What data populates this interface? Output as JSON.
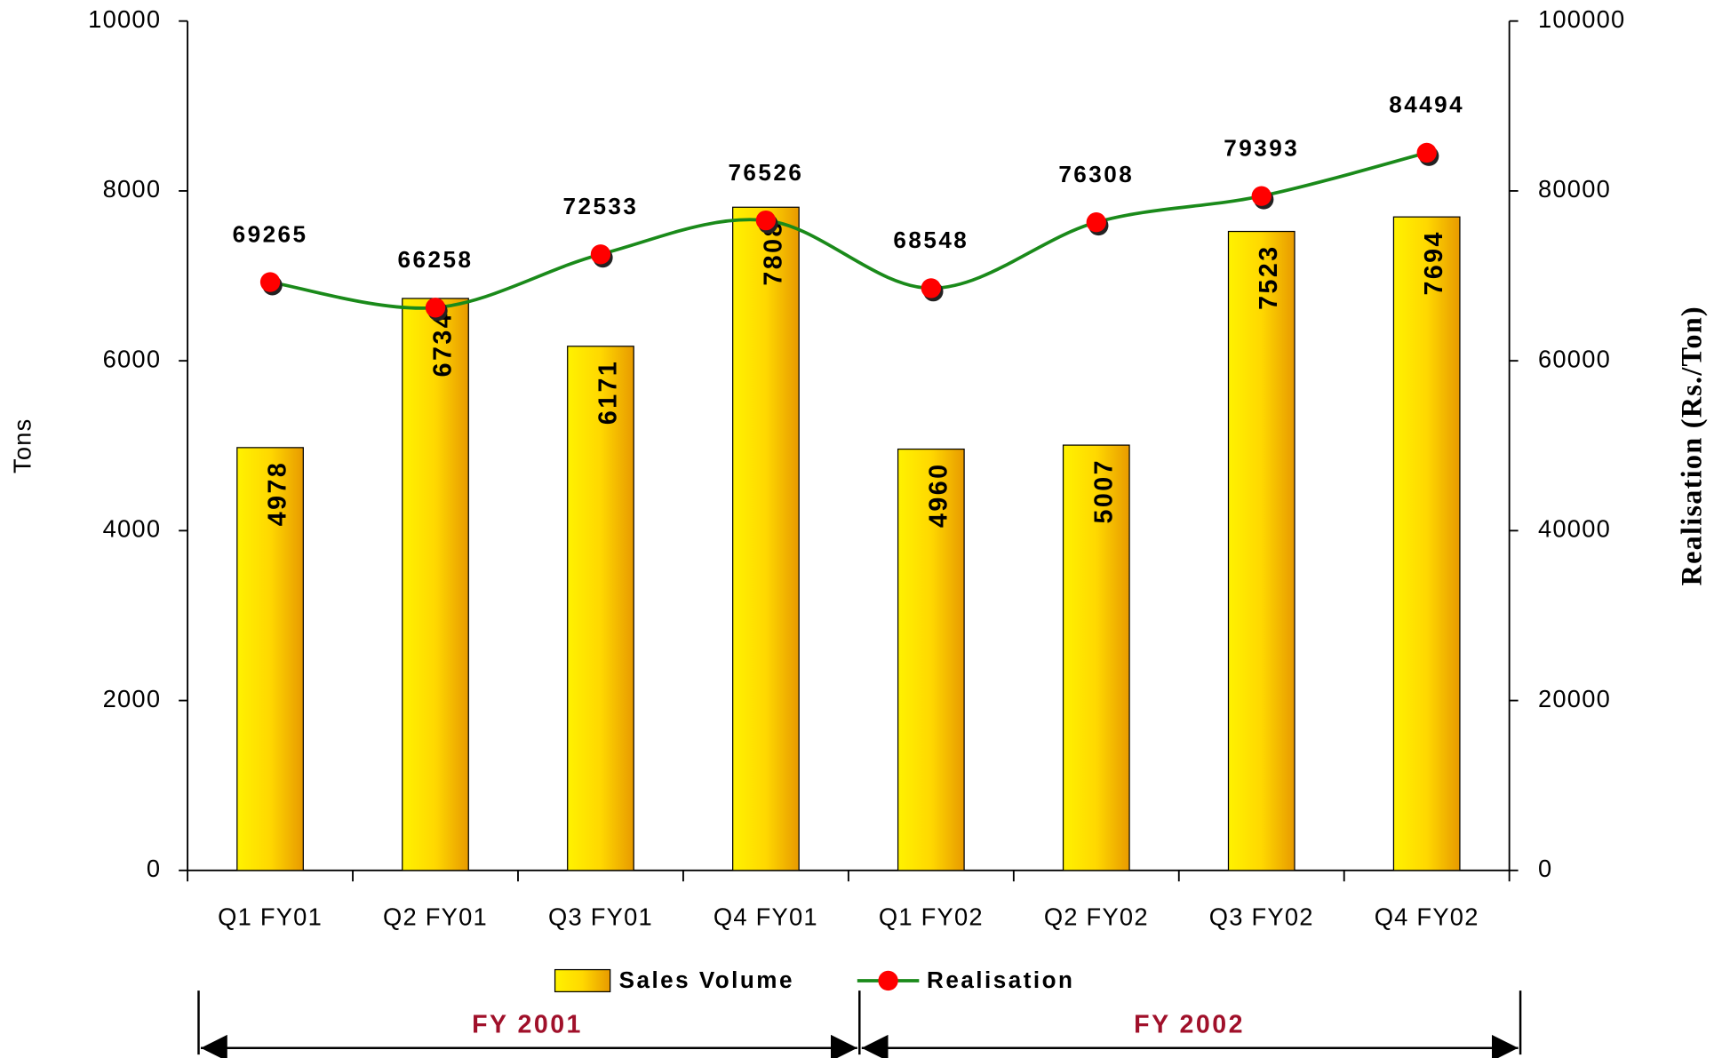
{
  "chart_data": {
    "type": "bar",
    "categories": [
      "Q1 FY01",
      "Q2 FY01",
      "Q3 FY01",
      "Q4 FY01",
      "Q1 FY02",
      "Q2 FY02",
      "Q3 FY02",
      "Q4 FY02"
    ],
    "series": [
      {
        "name": "Sales Volume",
        "type": "bar",
        "color": "#ffcc00",
        "values": [
          4978,
          6734,
          6171,
          7808,
          4960,
          5007,
          7523,
          7694
        ]
      },
      {
        "name": "Realisation",
        "type": "line",
        "axis": "y2",
        "color": "#1a8a1a",
        "marker_color": "#ff0000",
        "values": [
          69265,
          66258,
          72533,
          76526,
          68548,
          76308,
          79393,
          84494
        ]
      }
    ],
    "y_label": "Tons",
    "y2_label": "Realisation (Rs./Ton)",
    "ylim": [
      0,
      10000
    ],
    "yticks": [
      0,
      2000,
      4000,
      6000,
      8000,
      10000
    ],
    "y2lim": [
      0,
      100000
    ],
    "y2ticks": [
      0,
      20000,
      40000,
      60000,
      80000,
      100000
    ],
    "legend": "bottom",
    "annotations": [
      "FY 2001",
      "FY 2002"
    ]
  }
}
